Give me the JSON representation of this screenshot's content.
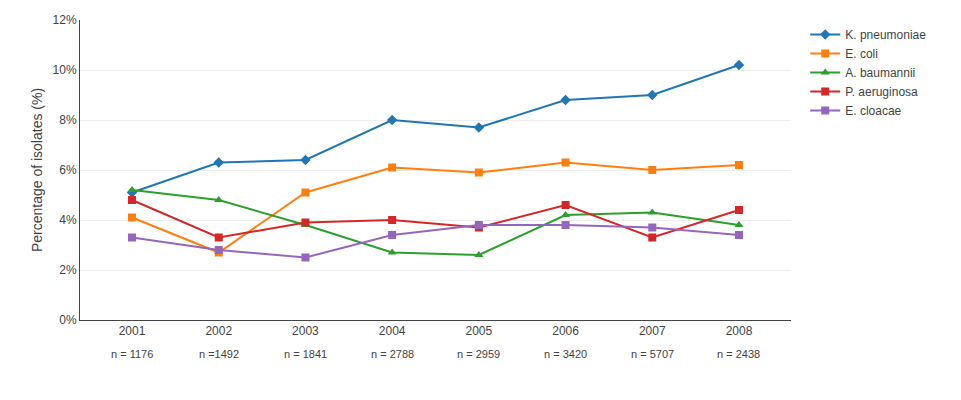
{
  "chart_data": {
    "type": "line",
    "x": [
      2001,
      2002,
      2003,
      2004,
      2005,
      2006,
      2007,
      2008
    ],
    "series": [
      {
        "name": "K. pneumoniae",
        "values": [
          5.1,
          6.3,
          6.4,
          8.0,
          7.7,
          8.8,
          9.0,
          10.2
        ],
        "marker": "diamond"
      },
      {
        "name": "E. coli",
        "values": [
          4.1,
          2.7,
          5.1,
          6.1,
          5.9,
          6.3,
          6.0,
          6.2
        ],
        "marker": "square"
      },
      {
        "name": "A. baumannii",
        "values": [
          5.2,
          4.8,
          3.8,
          2.7,
          2.6,
          4.2,
          4.3,
          3.8
        ],
        "marker": "triangle-up"
      },
      {
        "name": "P. aeruginosa",
        "values": [
          4.8,
          3.3,
          3.9,
          4.0,
          3.7,
          4.6,
          3.3,
          4.4
        ],
        "marker": "square"
      },
      {
        "name": "E. cloacae",
        "values": [
          3.3,
          2.8,
          2.5,
          3.4,
          3.8,
          3.8,
          3.7,
          3.4
        ],
        "marker": "square"
      }
    ],
    "ylabel": "Percentage of isolates (%)",
    "xlim": [
      2000.4,
      2008.6
    ],
    "xticks": [
      2001,
      2002,
      2003,
      2004,
      2005,
      2006,
      2007,
      2008
    ],
    "ylim": [
      0,
      12
    ],
    "yticks": [
      {
        "value": 0,
        "label": "0%"
      },
      {
        "value": 2,
        "label": "2%"
      },
      {
        "value": 4,
        "label": "4%"
      },
      {
        "value": 6,
        "label": "6%"
      },
      {
        "value": 8,
        "label": "8%"
      },
      {
        "value": 10,
        "label": "10%"
      },
      {
        "value": 12,
        "label": "12%"
      }
    ],
    "annotations": [
      {
        "x": 2001,
        "text": "n = 1176"
      },
      {
        "x": 2002,
        "text": "n =1492"
      },
      {
        "x": 2003,
        "text": "n = 1841"
      },
      {
        "x": 2004,
        "text": "n = 2788"
      },
      {
        "x": 2005,
        "text": "n = 2959"
      },
      {
        "x": 2006,
        "text": "n = 3420"
      },
      {
        "x": 2007,
        "text": "n = 5707"
      },
      {
        "x": 2008,
        "text": "n = 2438"
      }
    ],
    "grid": true,
    "legend": "right"
  }
}
